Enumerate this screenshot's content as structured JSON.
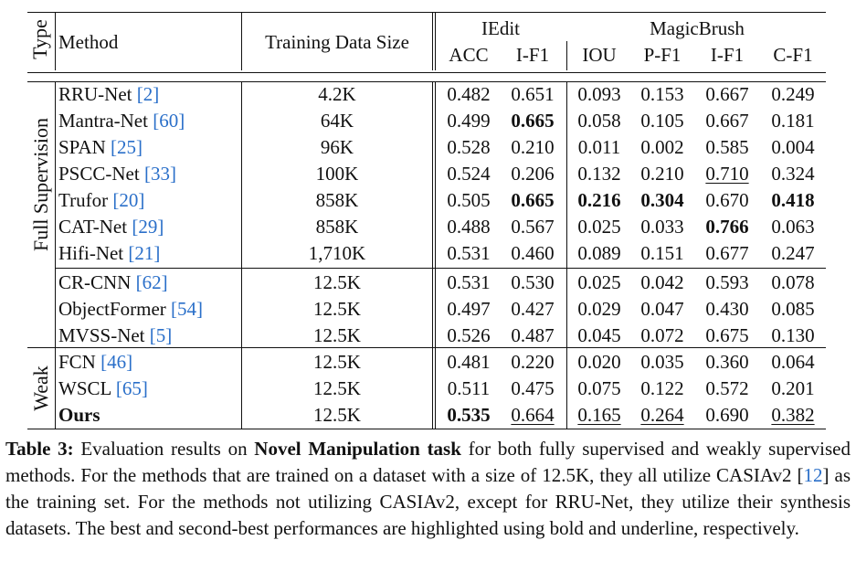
{
  "header": {
    "type": "Type",
    "method": "Method",
    "training_size": "Training Data Size",
    "iedit": "IEdit",
    "magicbrush": "MagicBrush",
    "metrics": [
      "ACC",
      "I-F1",
      "IOU",
      "P-F1",
      "I-F1",
      "C-F1"
    ]
  },
  "groups": {
    "full": "Full Supervision",
    "weak": "Weak"
  },
  "rows": [
    {
      "name": "RRU-Net ",
      "ref": "2",
      "ref_close": "]",
      "ref_open": "[",
      "size": "4.2K",
      "vals": [
        "0.482",
        "0.651",
        "0.093",
        "0.153",
        "0.667",
        "0.249"
      ],
      "style": [
        "",
        "",
        "",
        "",
        "",
        ""
      ]
    },
    {
      "name": "Mantra-Net ",
      "ref": "60",
      "ref_close": "]",
      "ref_open": "[",
      "size": "64K",
      "vals": [
        "0.499",
        "0.665",
        "0.058",
        "0.105",
        "0.667",
        "0.181"
      ],
      "style": [
        "",
        "b",
        "",
        "",
        "",
        ""
      ]
    },
    {
      "name": "SPAN ",
      "ref": "25",
      "ref_close": "]",
      "ref_open": "[",
      "size": "96K",
      "vals": [
        "0.528",
        "0.210",
        "0.011",
        "0.002",
        "0.585",
        "0.004"
      ],
      "style": [
        "",
        "",
        "",
        "",
        "",
        ""
      ]
    },
    {
      "name": "PSCC-Net ",
      "ref": "33",
      "ref_close": "]",
      "ref_open": "[",
      "size": "100K",
      "vals": [
        "0.524",
        "0.206",
        "0.132",
        "0.210",
        "0.710",
        "0.324"
      ],
      "style": [
        "",
        "",
        "",
        "",
        "u",
        ""
      ]
    },
    {
      "name": "Trufor ",
      "ref": "20",
      "ref_close": "]",
      "ref_open": "[",
      "size": "858K",
      "vals": [
        "0.505",
        "0.665",
        "0.216",
        "0.304",
        "0.670",
        "0.418"
      ],
      "style": [
        "",
        "b",
        "b",
        "b",
        "",
        "b"
      ]
    },
    {
      "name": "CAT-Net ",
      "ref": "29",
      "ref_close": "]",
      "ref_open": "[",
      "size": "858K",
      "vals": [
        "0.488",
        "0.567",
        "0.025",
        "0.033",
        "0.766",
        "0.063"
      ],
      "style": [
        "",
        "",
        "",
        "",
        "b",
        ""
      ]
    },
    {
      "name": "Hifi-Net ",
      "ref": "21",
      "ref_close": "]",
      "ref_open": "[",
      "size": "1,710K",
      "vals": [
        "0.531",
        "0.460",
        "0.089",
        "0.151",
        "0.677",
        "0.247"
      ],
      "style": [
        "",
        "",
        "",
        "",
        "",
        ""
      ]
    },
    {
      "name": "CR-CNN ",
      "ref": "62",
      "ref_close": "]",
      "ref_open": "[",
      "size": "12.5K",
      "vals": [
        "0.531",
        "0.530",
        "0.025",
        "0.042",
        "0.593",
        "0.078"
      ],
      "style": [
        "",
        "",
        "",
        "",
        "",
        ""
      ]
    },
    {
      "name": "ObjectFormer ",
      "ref": "54",
      "ref_close": "]",
      "ref_open": "[",
      "size": "12.5K",
      "vals": [
        "0.497",
        "0.427",
        "0.029",
        "0.047",
        "0.430",
        "0.085"
      ],
      "style": [
        "",
        "",
        "",
        "",
        "",
        ""
      ]
    },
    {
      "name": "MVSS-Net ",
      "ref": "5",
      "ref_close": "]",
      "ref_open": "[",
      "size": "12.5K",
      "vals": [
        "0.526",
        "0.487",
        "0.045",
        "0.072",
        "0.675",
        "0.130"
      ],
      "style": [
        "",
        "",
        "",
        "",
        "",
        ""
      ]
    },
    {
      "name": "FCN ",
      "ref": "46",
      "ref_close": "]",
      "ref_open": "[",
      "size": "12.5K",
      "vals": [
        "0.481",
        "0.220",
        "0.020",
        "0.035",
        "0.360",
        "0.064"
      ],
      "style": [
        "",
        "",
        "",
        "",
        "",
        ""
      ]
    },
    {
      "name": "WSCL ",
      "ref": "65",
      "ref_close": "]",
      "ref_open": "[",
      "size": "12.5K",
      "vals": [
        "0.511",
        "0.475",
        "0.075",
        "0.122",
        "0.572",
        "0.201"
      ],
      "style": [
        "",
        "",
        "",
        "",
        "",
        ""
      ]
    },
    {
      "name": "Ours",
      "ref": "",
      "ref_close": "",
      "ref_open": "",
      "size": "12.5K",
      "vals": [
        "0.535",
        "0.664",
        "0.165",
        "0.264",
        "0.690",
        "0.382"
      ],
      "style": [
        "b",
        "u",
        "u",
        "u",
        "",
        "u"
      ],
      "bold_name": true
    }
  ],
  "caption": {
    "label": "Table 3:",
    "t1": " Evaluation results on ",
    "bold": "Novel Manipulation task",
    "t2": " for both fully supervised and weakly supervised methods. For the methods that are trained on a dataset with a size of 12.5K, they all utilize CASIAv2 [",
    "ref": "12",
    "t3": "] as the training set. For the methods not utilizing CASIAv2, except for RRU-Net, they utilize their synthesis datasets. The best and second-best performances are highlighted using bold and underline, respectively."
  }
}
